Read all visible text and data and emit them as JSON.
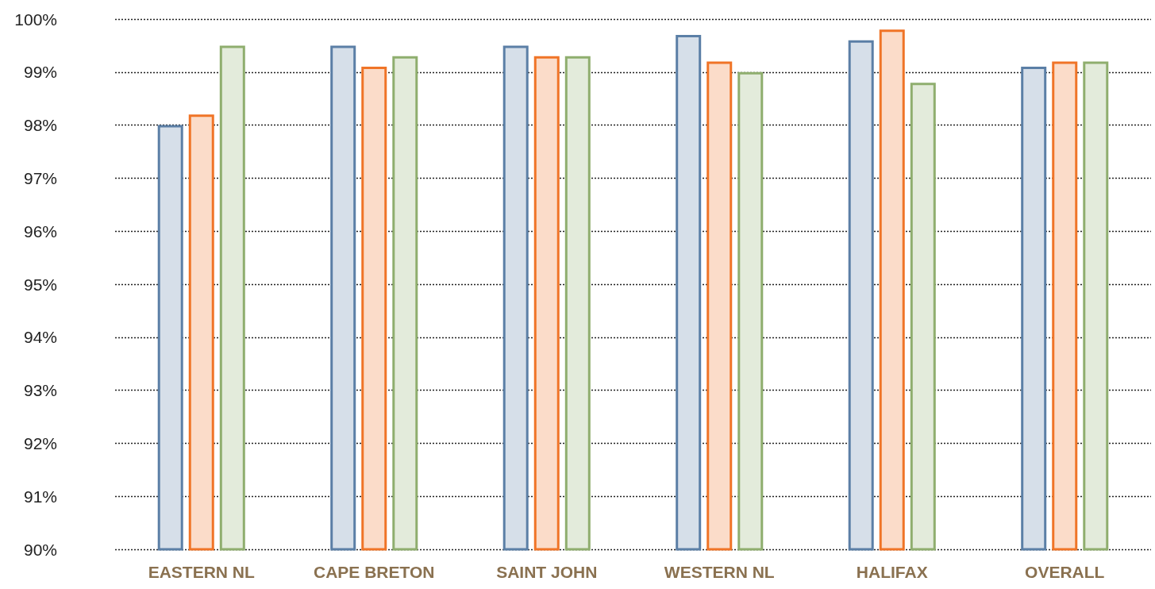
{
  "chart_data": {
    "type": "bar",
    "categories": [
      "EASTERN NL",
      "CAPE BRETON",
      "SAINT JOHN",
      "WESTERN NL",
      "HALIFAX",
      "OVERALL"
    ],
    "series": [
      {
        "color": "#5b7fa6",
        "values": [
          98.0,
          99.5,
          99.5,
          99.7,
          99.6,
          99.1
        ]
      },
      {
        "color": "#f07427",
        "values": [
          98.2,
          99.1,
          99.3,
          99.2,
          99.8,
          99.2
        ]
      },
      {
        "color": "#8fae6e",
        "values": [
          99.5,
          99.3,
          99.3,
          99.0,
          98.8,
          99.2
        ]
      }
    ],
    "ylim": [
      90,
      100
    ],
    "yticks": [
      {
        "value": 90,
        "label": "90%"
      },
      {
        "value": 91,
        "label": "91%"
      },
      {
        "value": 92,
        "label": "92%"
      },
      {
        "value": 93,
        "label": "93%"
      },
      {
        "value": 94,
        "label": "94%"
      },
      {
        "value": 95,
        "label": "95%"
      },
      {
        "value": 96,
        "label": "96%"
      },
      {
        "value": 97,
        "label": "97%"
      },
      {
        "value": 98,
        "label": "98%"
      },
      {
        "value": 99,
        "label": "99%"
      },
      {
        "value": 100,
        "label": "100%"
      }
    ],
    "grid": "y"
  }
}
